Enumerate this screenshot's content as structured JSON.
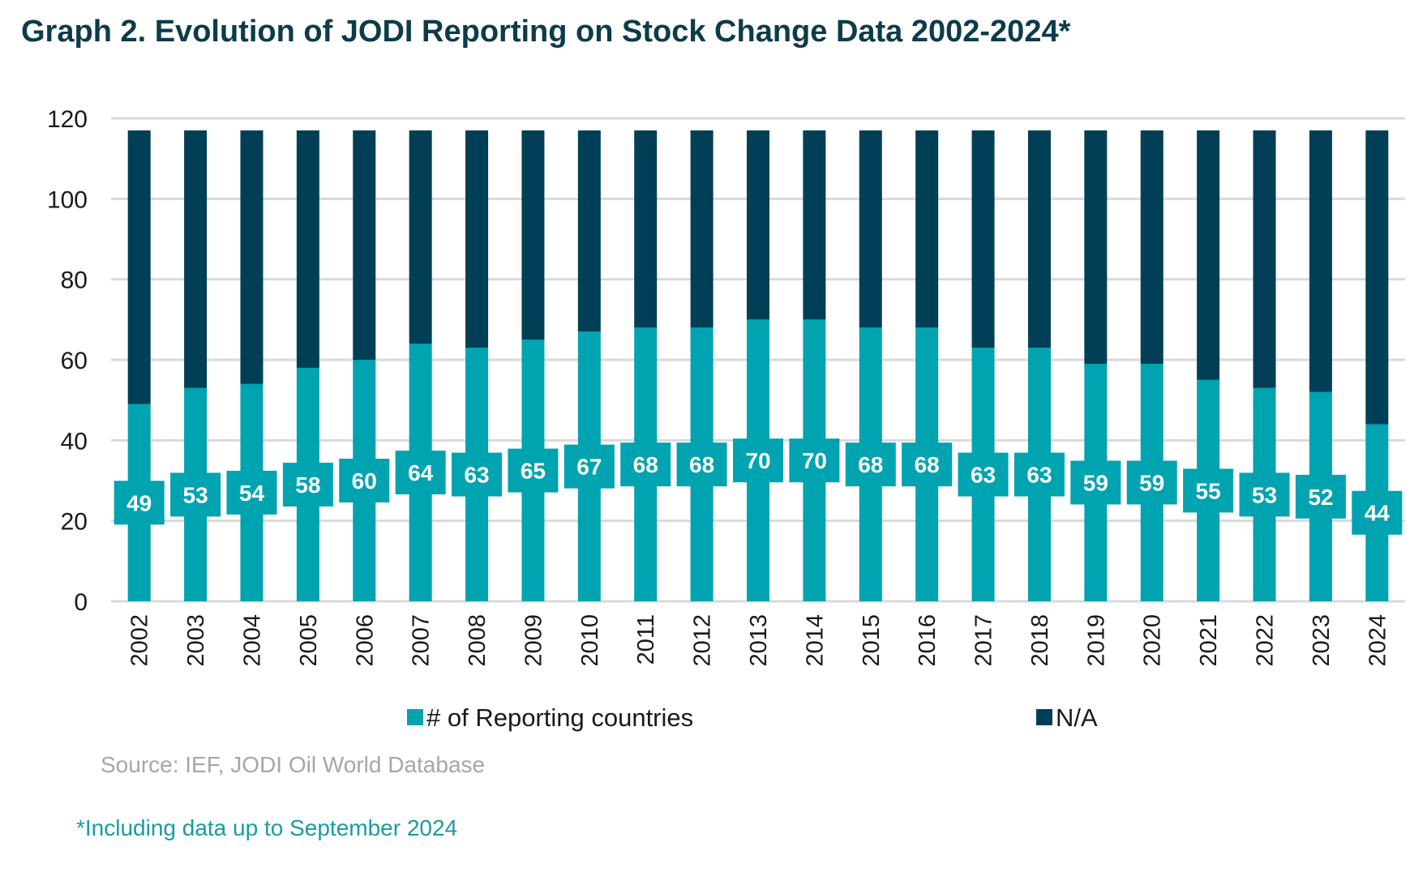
{
  "header": {
    "title": "Graph 2. Evolution of JODI Reporting on Stock Change Data 2002-2024*"
  },
  "footer": {
    "source": "Source: IEF, JODI Oil World Database",
    "note": "*Including data up to September 2024"
  },
  "colors": {
    "reporting": "#00a3b0",
    "na": "#003f55",
    "grid": "#d9d9d9"
  },
  "chart_data": {
    "type": "bar",
    "stacked": true,
    "title": "Graph 2. Evolution of JODI Reporting on Stock Change Data 2002-2024*",
    "xlabel": "",
    "ylabel": "",
    "ylim": [
      0,
      120
    ],
    "yticks": [
      0,
      20,
      40,
      60,
      80,
      100,
      120
    ],
    "grid": true,
    "legend_position": "bottom",
    "categories": [
      "2002",
      "2003",
      "2004",
      "2005",
      "2006",
      "2007",
      "2008",
      "2009",
      "2010",
      "2011",
      "2012",
      "2013",
      "2014",
      "2015",
      "2016",
      "2017",
      "2018",
      "2019",
      "2020",
      "2021",
      "2022",
      "2023",
      "2024"
    ],
    "series": [
      {
        "name": "# of Reporting countries",
        "color": "#00a3b0",
        "values": [
          49,
          53,
          54,
          58,
          60,
          64,
          63,
          65,
          67,
          68,
          68,
          70,
          70,
          68,
          68,
          63,
          63,
          59,
          59,
          55,
          53,
          52,
          44
        ],
        "labels": [
          "49",
          "53",
          "54",
          "58",
          "60",
          "64",
          "63",
          "65",
          "67",
          "68",
          "68",
          "70",
          "70",
          "68",
          "68",
          "63",
          "63",
          "59",
          "59",
          "55",
          "53",
          "52",
          "44"
        ]
      },
      {
        "name": "N/A",
        "color": "#003f55",
        "values": [
          68,
          64,
          63,
          59,
          57,
          53,
          54,
          52,
          50,
          49,
          49,
          47,
          47,
          49,
          49,
          54,
          54,
          58,
          58,
          62,
          64,
          65,
          73
        ]
      }
    ]
  }
}
